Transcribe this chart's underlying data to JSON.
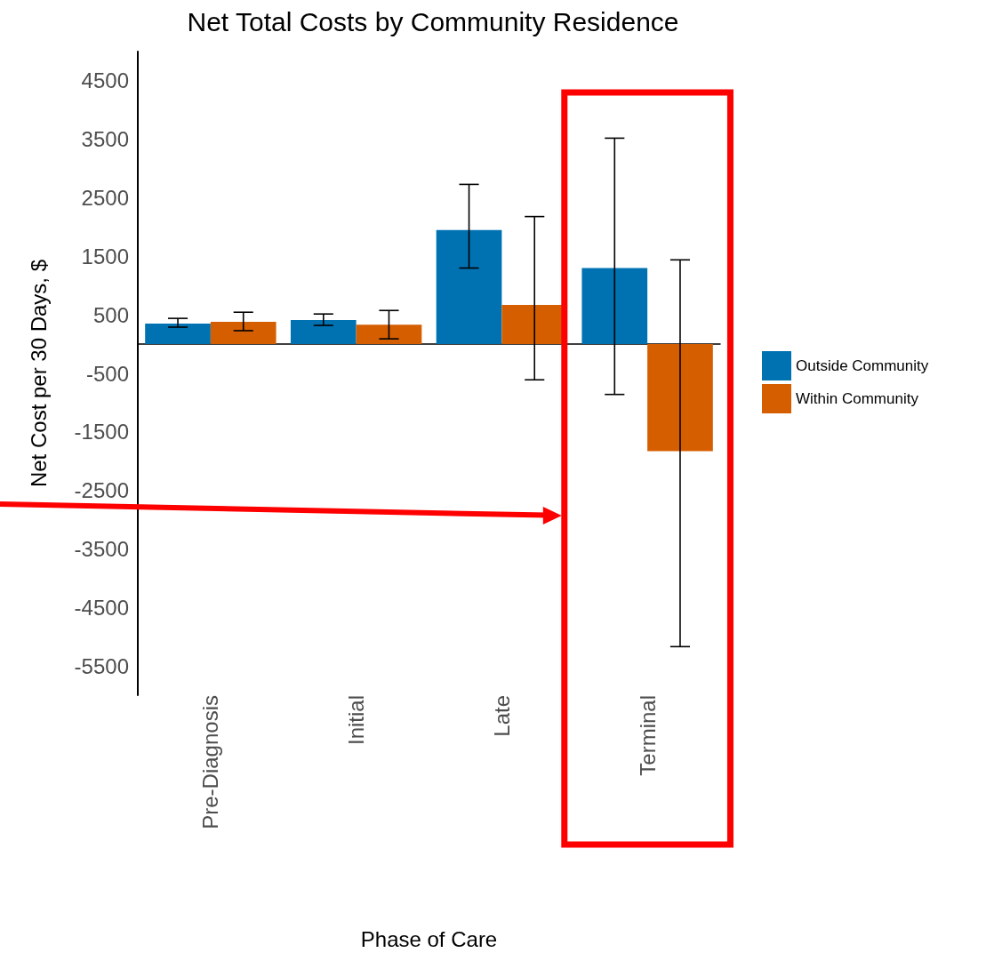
{
  "chart_data": {
    "type": "bar",
    "title": "Net Total Costs by Community Residence",
    "xlabel": "Phase of Care",
    "ylabel": "Net Cost per 30 Days, $",
    "categories": [
      "Pre-Diagnosis",
      "Initial",
      "Late",
      "Terminal"
    ],
    "series": [
      {
        "name": "Outside Community",
        "color": "#0072b2",
        "values": [
          350,
          410,
          1950,
          1300
        ],
        "errors": [
          [
            290,
            440
          ],
          [
            320,
            515
          ],
          [
            1300,
            2730
          ],
          [
            -860,
            3520
          ]
        ]
      },
      {
        "name": "Within Community",
        "color": "#d55e00",
        "values": [
          380,
          330,
          670,
          -1830
        ],
        "errors": [
          [
            230,
            545
          ],
          [
            90,
            575
          ],
          [
            -610,
            2180
          ],
          [
            -5170,
            1440
          ]
        ]
      }
    ],
    "ylim": [
      -6000,
      5000
    ],
    "yticks": [
      -5500,
      -4500,
      -3500,
      -2500,
      -1500,
      -500,
      500,
      1500,
      2500,
      3500,
      4500
    ],
    "grid": false,
    "legend": "right"
  }
}
